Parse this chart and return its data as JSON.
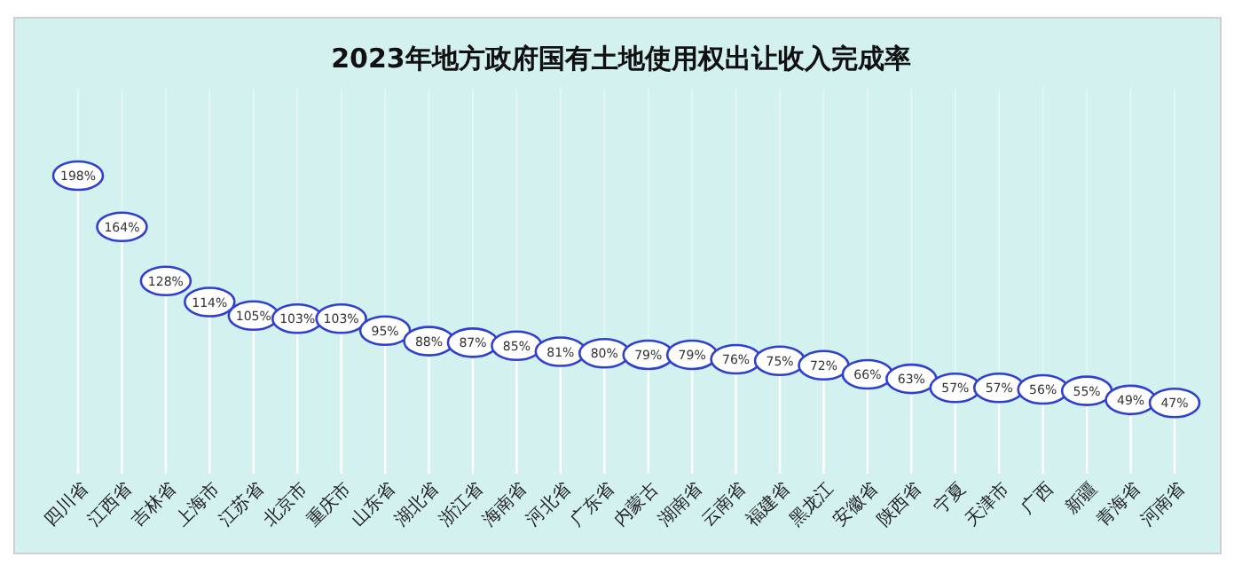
{
  "chart_data": {
    "type": "lollipop",
    "title": "2023年地方政府国有土地使用权出让收入完成率",
    "categories": [
      "四川省",
      "江西省",
      "吉林省",
      "上海市",
      "江苏省",
      "北京市",
      "重庆市",
      "山东省",
      "湖北省",
      "浙江省",
      "海南省",
      "河北省",
      "广东省",
      "内蒙古",
      "湖南省",
      "云南省",
      "福建省",
      "黑龙江",
      "安徽省",
      "陕西省",
      "宁夏",
      "天津市",
      "广西",
      "新疆",
      "青海省",
      "河南省"
    ],
    "values": [
      198,
      164,
      128,
      114,
      105,
      103,
      103,
      95,
      88,
      87,
      85,
      81,
      80,
      79,
      79,
      76,
      75,
      72,
      66,
      63,
      57,
      57,
      56,
      55,
      49,
      47
    ],
    "value_labels": [
      "198%",
      "164%",
      "128%",
      "114%",
      "105%",
      "103%",
      "103%",
      "95%",
      "88%",
      "87%",
      "85%",
      "81%",
      "80%",
      "79%",
      "79%",
      "76%",
      "75%",
      "72%",
      "66%",
      "63%",
      "57%",
      "57%",
      "56%",
      "55%",
      "49%",
      "47%"
    ],
    "color": "#2f3fd0",
    "marker": "circle",
    "grid": "x"
  }
}
